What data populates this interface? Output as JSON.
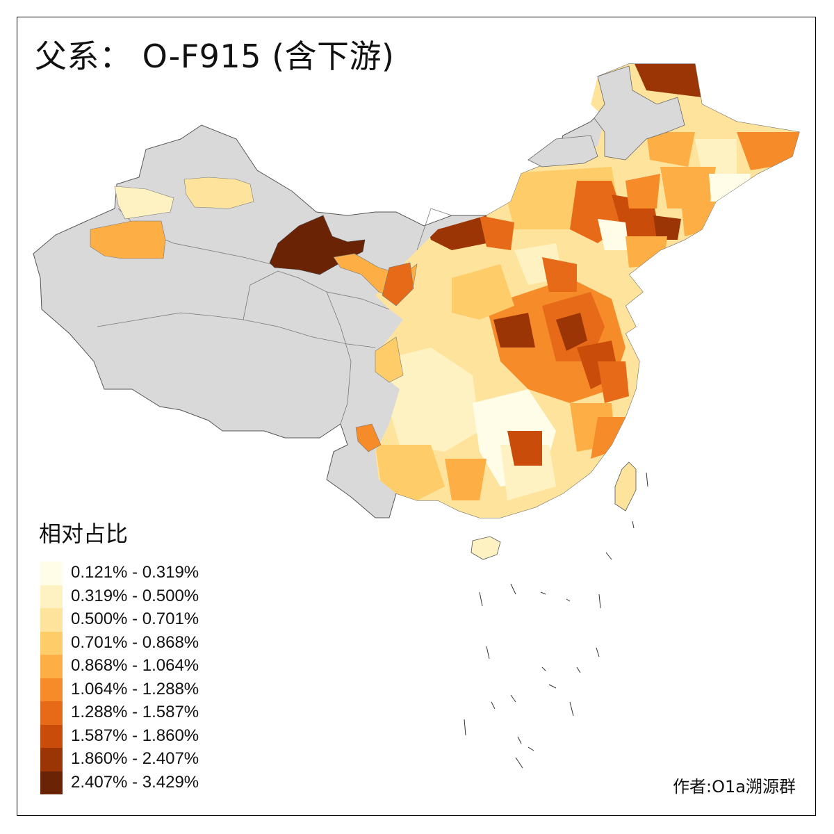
{
  "title": "父系： O-F915 (含下游)",
  "legend": {
    "title": "相对占比",
    "items": [
      {
        "label": "0.121% - 0.319%",
        "color": "#fffde8"
      },
      {
        "label": "0.319% - 0.500%",
        "color": "#fff2c2"
      },
      {
        "label": "0.500% - 0.701%",
        "color": "#fee39c"
      },
      {
        "label": "0.701% - 0.868%",
        "color": "#fecd6a"
      },
      {
        "label": "0.868% - 1.064%",
        "color": "#fdae45"
      },
      {
        "label": "1.064% - 1.288%",
        "color": "#f68b2a"
      },
      {
        "label": "1.288% - 1.587%",
        "color": "#e66a18"
      },
      {
        "label": "1.587% - 1.860%",
        "color": "#c94c0b"
      },
      {
        "label": "1.860% - 2.407%",
        "color": "#9c3506"
      },
      {
        "label": "2.407% - 3.429%",
        "color": "#6b2306"
      }
    ]
  },
  "no_data_color": "#d9d9d9",
  "author": "作者:O1a溯源群"
}
